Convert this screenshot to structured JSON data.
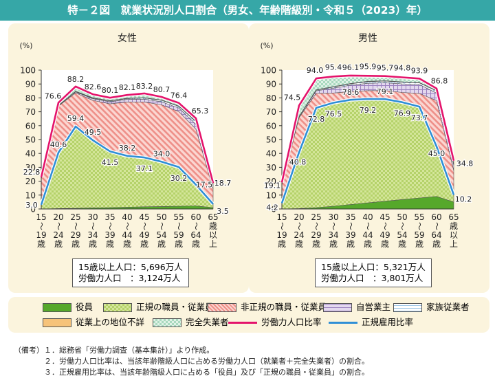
{
  "title": "特－２図　就業状況別人口割合（男女、年齢階級別・令和５（2023）年）",
  "colors": {
    "header": "#36a7a7",
    "panel": "#fbf4dd",
    "officer": "#56a82b",
    "regular": "#c6dc7e",
    "nonregular": "#f2a6a2",
    "self": "#c9b8dc",
    "family": "#ffffff",
    "unknown": "#f6c37a",
    "unemployed": "#c6e8d6",
    "labor_line": "#e4136b",
    "regular_line": "#2f8fd6"
  },
  "chart_data": [
    {
      "type": "area",
      "title": "女性",
      "ylabel": "(%)",
      "ylim": [
        0,
        100
      ],
      "yticks": [
        0,
        10,
        20,
        30,
        40,
        50,
        60,
        70,
        80,
        90,
        100
      ],
      "categories": [
        [
          "15",
          "～",
          "19",
          "歳"
        ],
        [
          "20",
          "～",
          "24",
          "歳"
        ],
        [
          "25",
          "～",
          "29",
          "歳"
        ],
        [
          "30",
          "～",
          "34",
          "歳"
        ],
        [
          "35",
          "～",
          "39",
          "歳"
        ],
        [
          "40",
          "～",
          "44",
          "歳"
        ],
        [
          "45",
          "～",
          "49",
          "歳"
        ],
        [
          "50",
          "～",
          "54",
          "歳"
        ],
        [
          "55",
          "～",
          "59",
          "歳"
        ],
        [
          "60",
          "～",
          "64",
          "歳"
        ],
        [
          "65",
          "歳",
          "以",
          "上"
        ]
      ],
      "series": [
        {
          "name": "役員",
          "values": [
            0,
            0.3,
            0.5,
            0.8,
            1.0,
            1.3,
            1.6,
            1.8,
            2.0,
            2.2,
            1.0
          ]
        },
        {
          "name": "正規の職員・従業員",
          "values": [
            3.0,
            40.3,
            58.9,
            48.7,
            40.5,
            36.9,
            35.5,
            32.2,
            28.2,
            15.3,
            2.5
          ]
        },
        {
          "name": "非正規の職員・従業員",
          "values": [
            18.8,
            33.5,
            24.2,
            28.7,
            34.2,
            38.9,
            40.0,
            41.0,
            40.0,
            40.0,
            11.0
          ]
        },
        {
          "name": "自営業主",
          "values": [
            0.1,
            0.3,
            0.7,
            1.2,
            1.5,
            1.8,
            2.0,
            2.2,
            2.5,
            3.5,
            2.5
          ]
        },
        {
          "name": "家族従業者",
          "values": [
            0,
            0.1,
            0.2,
            0.4,
            0.5,
            0.6,
            0.8,
            1.0,
            1.2,
            1.8,
            1.2
          ]
        },
        {
          "name": "従業上の地位不詳",
          "values": [
            0,
            0.2,
            0.3,
            0.3,
            0.3,
            0.3,
            0.3,
            0.3,
            0.3,
            0.3,
            0.2
          ]
        },
        {
          "name": "完全失業者",
          "values": [
            0.9,
            1.9,
            3.4,
            2.5,
            2.1,
            2.3,
            3.0,
            2.2,
            2.2,
            2.2,
            0.3
          ]
        }
      ],
      "labor_force_ratio": [
        22.8,
        76.6,
        88.2,
        82.6,
        80.1,
        82.1,
        83.2,
        80.7,
        76.4,
        65.3,
        18.7
      ],
      "regular_employment_ratio": [
        3.0,
        40.6,
        59.4,
        49.5,
        41.5,
        38.2,
        37.1,
        34.0,
        30.2,
        17.5,
        3.5
      ],
      "info": {
        "pop_label": "15歳以上人口：",
        "pop_value": "5,696万人",
        "labor_label": "労働力人口　：",
        "labor_value": "3,124万人"
      }
    },
    {
      "type": "area",
      "title": "男性",
      "ylabel": "(%)",
      "ylim": [
        0,
        100
      ],
      "yticks": [
        0,
        10,
        20,
        30,
        40,
        50,
        60,
        70,
        80,
        90,
        100
      ],
      "categories": [
        [
          "15",
          "～",
          "19",
          "歳"
        ],
        [
          "20",
          "～",
          "24",
          "歳"
        ],
        [
          "25",
          "～",
          "29",
          "歳"
        ],
        [
          "30",
          "～",
          "34",
          "歳"
        ],
        [
          "35",
          "～",
          "39",
          "歳"
        ],
        [
          "40",
          "～",
          "44",
          "歳"
        ],
        [
          "45",
          "～",
          "49",
          "歳"
        ],
        [
          "50",
          "～",
          "54",
          "歳"
        ],
        [
          "55",
          "～",
          "59",
          "歳"
        ],
        [
          "60",
          "～",
          "64",
          "歳"
        ],
        [
          "65",
          "歳",
          "以",
          "上"
        ]
      ],
      "series": [
        {
          "name": "役員",
          "values": [
            0,
            0.3,
            1.0,
            2.0,
            3.2,
            4.4,
            5.6,
            6.8,
            7.9,
            9.0,
            5.0
          ]
        },
        {
          "name": "正規の職員・従業員",
          "values": [
            4.2,
            40.5,
            71.8,
            74.5,
            75.4,
            74.8,
            73.5,
            70.1,
            65.8,
            36.0,
            5.2
          ]
        },
        {
          "name": "非正規の職員・従業員",
          "values": [
            13.5,
            25.0,
            10.5,
            7.0,
            6.0,
            6.0,
            6.2,
            7.0,
            9.5,
            33.0,
            17.5
          ]
        },
        {
          "name": "自営業主",
          "values": [
            0.1,
            0.5,
            1.8,
            3.5,
            4.6,
            5.3,
            5.6,
            6.2,
            6.4,
            5.5,
            4.0
          ]
        },
        {
          "name": "家族従業者",
          "values": [
            0,
            0.2,
            0.5,
            0.8,
            0.9,
            1.2,
            1.2,
            1.2,
            1.2,
            1.5,
            0.5
          ]
        },
        {
          "name": "従業上の地位不詳",
          "values": [
            0,
            0.2,
            0.3,
            0.3,
            0.3,
            0.3,
            0.3,
            0.3,
            0.3,
            0.3,
            0.2
          ]
        },
        {
          "name": "完全失業者",
          "values": [
            1.3,
            7.8,
            8.1,
            7.3,
            5.7,
            3.9,
            3.3,
            3.2,
            2.8,
            1.5,
            2.4
          ]
        }
      ],
      "labor_force_ratio": [
        19.1,
        74.5,
        94.0,
        95.4,
        96.1,
        95.9,
        95.7,
        94.8,
        93.9,
        86.8,
        34.8
      ],
      "regular_employment_ratio": [
        4.2,
        40.8,
        72.8,
        76.5,
        78.6,
        79.2,
        79.1,
        76.9,
        73.7,
        45.0,
        10.2
      ],
      "info": {
        "pop_label": "15歳以上人口：",
        "pop_value": "5,321万人",
        "labor_label": "労働力人口　：",
        "labor_value": "3,801万人"
      }
    }
  ],
  "legend": [
    {
      "label": "役員",
      "swatch": "officer"
    },
    {
      "label": "正規の職員・従業員",
      "swatch": "regular"
    },
    {
      "label": "非正規の職員・従業員",
      "swatch": "nonregular"
    },
    {
      "label": "自営業主",
      "swatch": "self"
    },
    {
      "label": "家族従業者",
      "swatch": "family"
    },
    {
      "label": "従業上の地位不詳",
      "swatch": "unknown"
    },
    {
      "label": "完全失業者",
      "swatch": "unemployed"
    },
    {
      "label": "労働力人口比率",
      "line": "labor_line"
    },
    {
      "label": "正規雇用比率",
      "line": "regular_line"
    }
  ],
  "notes": {
    "heading": "（備考）",
    "lines": [
      "１．総務省「労働力調査（基本集計）」より作成。",
      "２．労働力人口比率は、当該年齢階級人口に占める労働力人口（就業者＋完全失業者）の割合。",
      "３．正規雇用比率は、当該年齢階級人口に占める「役員」及び「正規の職員・従業員」の割合。"
    ]
  }
}
